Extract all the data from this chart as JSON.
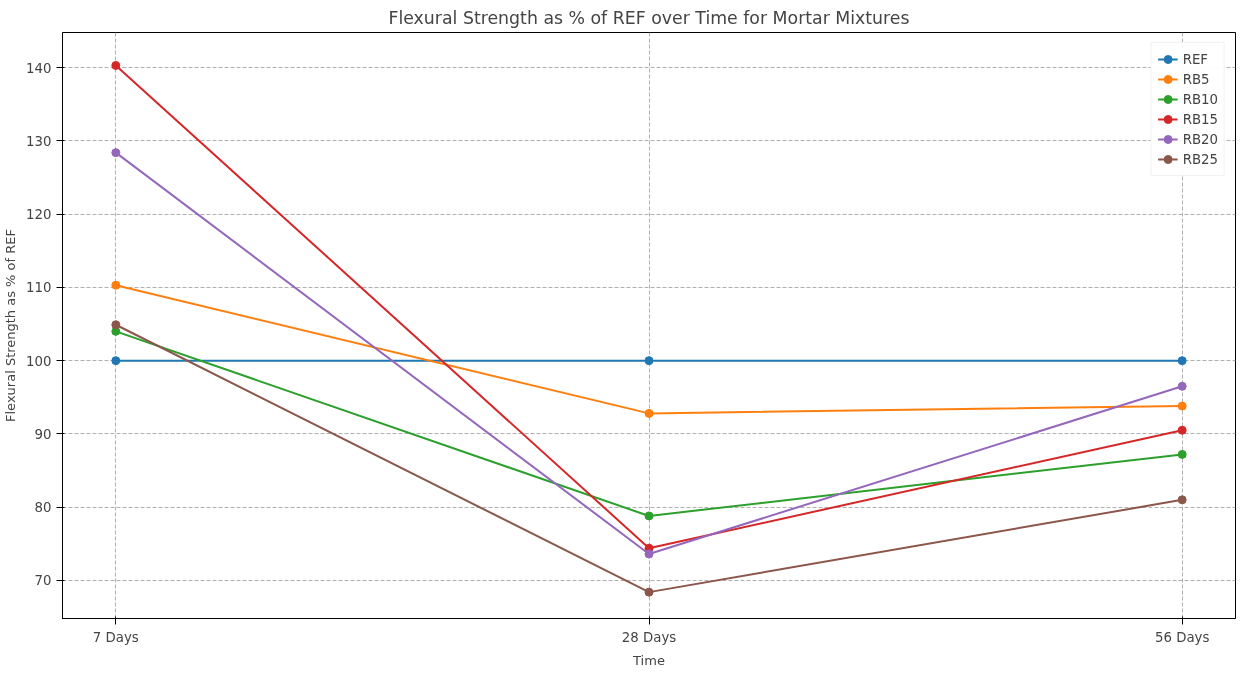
{
  "chart_data": {
    "type": "line",
    "title": "Flexural Strength as % of REF over Time for Mortar Mixtures",
    "xlabel": "Time",
    "ylabel": "Flexural Strength as % of REF",
    "categories": [
      "7 Days",
      "28 Days",
      "56 Days"
    ],
    "series": [
      {
        "name": "REF",
        "color": "#1f77b4",
        "values": [
          100,
          100,
          100
        ]
      },
      {
        "name": "RB5",
        "color": "#ff7f0e",
        "values": [
          110.3,
          92.8,
          93.8
        ]
      },
      {
        "name": "RB10",
        "color": "#2ca02c",
        "values": [
          104.0,
          78.8,
          87.2
        ]
      },
      {
        "name": "RB15",
        "color": "#d62728",
        "values": [
          140.3,
          74.4,
          90.5
        ]
      },
      {
        "name": "RB20",
        "color": "#9467bd",
        "values": [
          128.4,
          73.6,
          96.5
        ]
      },
      {
        "name": "RB25",
        "color": "#8c564b",
        "values": [
          104.9,
          68.4,
          81.0
        ]
      }
    ],
    "ylim": [
      64.8,
      144.8
    ],
    "yticks": [
      70,
      80,
      90,
      100,
      110,
      120,
      130,
      140
    ],
    "grid": true,
    "legend": "top right",
    "marker": "circle",
    "line_style": "solid"
  }
}
